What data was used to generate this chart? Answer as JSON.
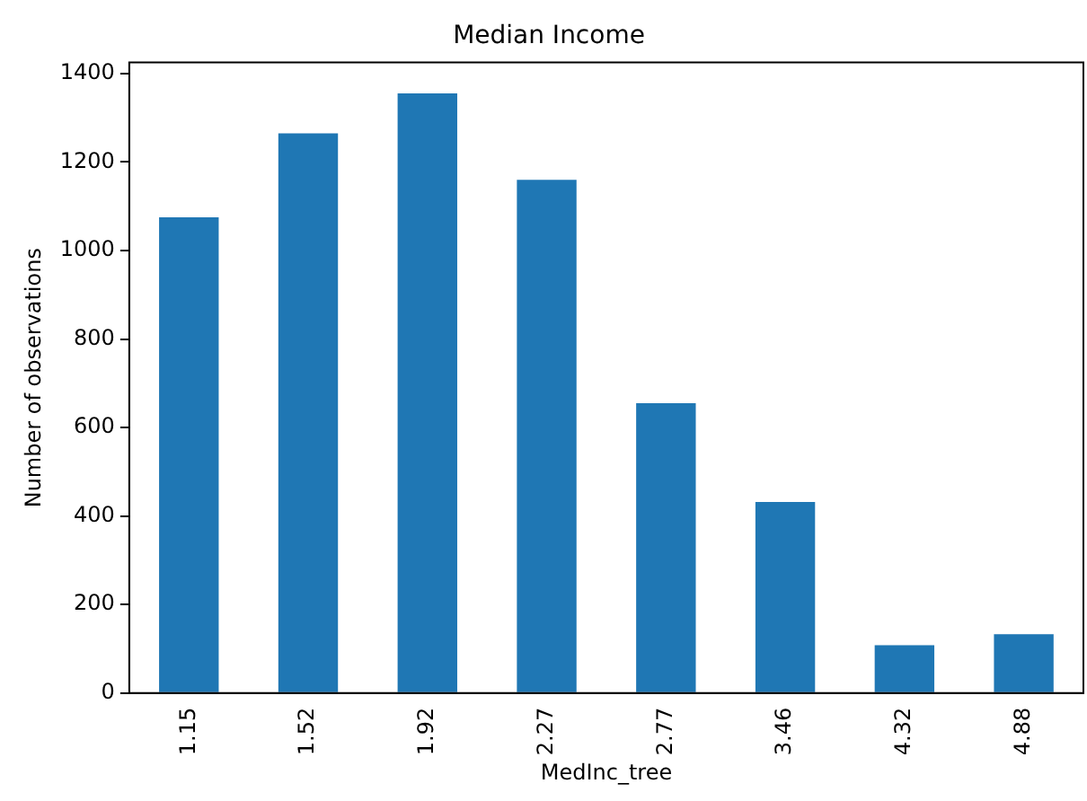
{
  "chart_data": {
    "type": "bar",
    "title": "Median Income",
    "xlabel": "MedInc_tree",
    "ylabel": "Number of observations",
    "categories": [
      "1.15",
      "1.52",
      "1.92",
      "2.27",
      "2.77",
      "3.46",
      "4.32",
      "4.88"
    ],
    "values": [
      1075,
      1265,
      1355,
      1160,
      655,
      432,
      108,
      133
    ],
    "color": "#1f77b4",
    "ylim": [
      0,
      1425
    ],
    "yticks": [
      0,
      200,
      400,
      600,
      800,
      1000,
      1200,
      1400
    ],
    "grid": false,
    "legend": false
  }
}
